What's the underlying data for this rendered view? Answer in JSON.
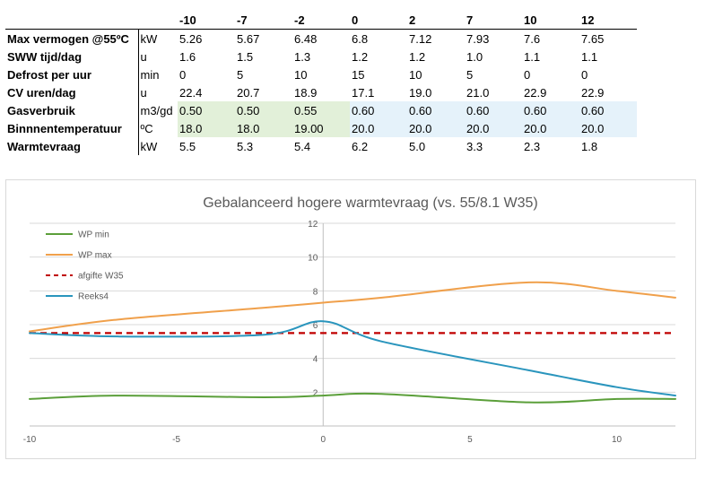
{
  "table": {
    "headers": [
      "-10",
      "-7",
      "-2",
      "0",
      "2",
      "7",
      "10",
      "12"
    ],
    "rows": [
      {
        "label": "Max vermogen @55ºC",
        "unit": "kW",
        "values": [
          "5.26",
          "5.67",
          "6.48",
          "6.8",
          "7.12",
          "7.93",
          "7.6",
          "7.65"
        ],
        "bg": [
          "",
          "",
          "",
          "",
          "",
          "",
          "",
          ""
        ]
      },
      {
        "label": "SWW tijd/dag",
        "unit": "u",
        "values": [
          "1.6",
          "1.5",
          "1.3",
          "1.2",
          "1.2",
          "1.0",
          "1.1",
          "1.1"
        ],
        "bg": [
          "",
          "",
          "",
          "",
          "",
          "",
          "",
          ""
        ]
      },
      {
        "label": "Defrost per uur",
        "unit": "min",
        "values": [
          "0",
          "5",
          "10",
          "15",
          "10",
          "5",
          "0",
          "0"
        ],
        "bg": [
          "",
          "",
          "",
          "",
          "",
          "",
          "",
          ""
        ]
      },
      {
        "label": "CV uren/dag",
        "unit": "u",
        "values": [
          "22.4",
          "20.7",
          "18.9",
          "17.1",
          "19.0",
          "21.0",
          "22.9",
          "22.9"
        ],
        "bg": [
          "",
          "",
          "",
          "",
          "",
          "",
          "",
          ""
        ]
      },
      {
        "label": "Gasverbruik",
        "unit": "m3/gd",
        "values": [
          "0.50",
          "0.50",
          "0.55",
          "0.60",
          "0.60",
          "0.60",
          "0.60",
          "0.60"
        ],
        "bg": [
          "g",
          "g",
          "g",
          "b",
          "b",
          "b",
          "b",
          "b"
        ]
      },
      {
        "label": "Binnnentemperatuur",
        "unit": "ºC",
        "values": [
          "18.0",
          "18.0",
          "19.00",
          "20.0",
          "20.0",
          "20.0",
          "20.0",
          "20.0"
        ],
        "bg": [
          "g",
          "g",
          "g",
          "b",
          "b",
          "b",
          "b",
          "b"
        ]
      },
      {
        "label": "Warmtevraag",
        "unit": "kW",
        "values": [
          "5.5",
          "5.3",
          "5.4",
          "6.2",
          "5.0",
          "3.3",
          "2.3",
          "1.8"
        ],
        "bg": [
          "",
          "",
          "",
          "",
          "",
          "",
          "",
          ""
        ]
      }
    ]
  },
  "chart_data": {
    "type": "line",
    "title": "Gebalanceerd hogere warmtevraag (vs. 55/8.1 W35)",
    "xlim": [
      -10,
      12
    ],
    "ylim": [
      0,
      12
    ],
    "x_ticks": [
      -10,
      -5,
      0,
      5,
      10
    ],
    "y_ticks": [
      2,
      4,
      6,
      8,
      10,
      12
    ],
    "grid": "horizontal",
    "legend_position": "top-left",
    "series": [
      {
        "name": "WP min",
        "color": "#5b9f3a",
        "dash": false,
        "x": [
          -10,
          -7,
          -2,
          0,
          2,
          7,
          10,
          12
        ],
        "y": [
          1.6,
          1.8,
          1.7,
          1.8,
          1.9,
          1.4,
          1.6,
          1.6
        ]
      },
      {
        "name": "WP max",
        "color": "#f0a04b",
        "dash": false,
        "x": [
          -10,
          -7,
          -2,
          0,
          2,
          7,
          10,
          12
        ],
        "y": [
          5.6,
          6.3,
          7.0,
          7.3,
          7.6,
          8.5,
          8.0,
          7.6
        ]
      },
      {
        "name": "afgifte W35",
        "color": "#c00000",
        "dash": true,
        "x": [
          -10,
          12
        ],
        "y": [
          5.5,
          5.5
        ]
      },
      {
        "name": "Reeks4",
        "color": "#2a95bd",
        "dash": false,
        "x": [
          -10,
          -7,
          -2,
          0,
          2,
          7,
          10,
          12
        ],
        "y": [
          5.5,
          5.3,
          5.4,
          6.2,
          5.0,
          3.3,
          2.3,
          1.8
        ]
      }
    ]
  }
}
